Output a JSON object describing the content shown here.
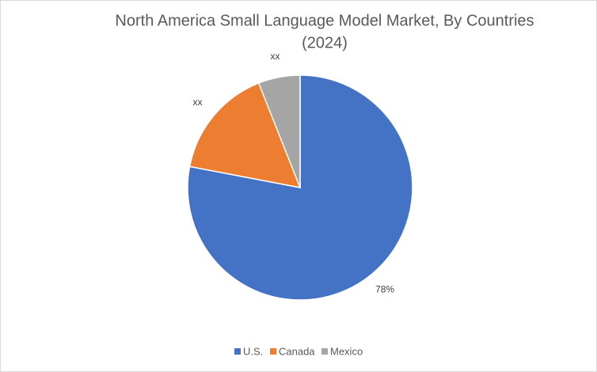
{
  "chart_data": {
    "type": "pie",
    "title": "North America Small Language Model Market, By Countries",
    "subtitle": "(2024)",
    "categories": [
      "U.S.",
      "Canada",
      "Mexico"
    ],
    "values": [
      78,
      16,
      6
    ],
    "value_labels": [
      "78%",
      "xx",
      "xx"
    ],
    "colors": [
      "#4472c4",
      "#ed7d31",
      "#a5a5a5"
    ],
    "legend": "bottom"
  }
}
